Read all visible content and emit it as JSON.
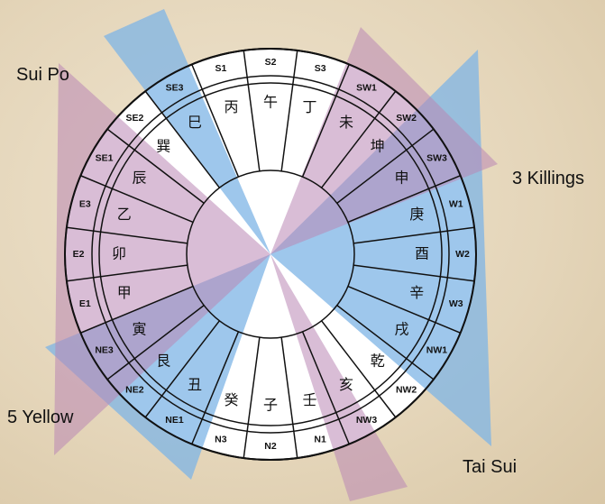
{
  "compass": {
    "sectors": [
      {
        "code": "S2",
        "mountain": "午"
      },
      {
        "code": "S3",
        "mountain": "丁"
      },
      {
        "code": "SW1",
        "mountain": "未"
      },
      {
        "code": "SW2",
        "mountain": "坤"
      },
      {
        "code": "SW3",
        "mountain": "申"
      },
      {
        "code": "W1",
        "mountain": "庚"
      },
      {
        "code": "W2",
        "mountain": "酉"
      },
      {
        "code": "W3",
        "mountain": "辛"
      },
      {
        "code": "NW1",
        "mountain": "戌"
      },
      {
        "code": "NW2",
        "mountain": "乾"
      },
      {
        "code": "NW3",
        "mountain": "亥"
      },
      {
        "code": "N1",
        "mountain": "壬"
      },
      {
        "code": "N2",
        "mountain": "子"
      },
      {
        "code": "N3",
        "mountain": "癸"
      },
      {
        "code": "NE1",
        "mountain": "丑"
      },
      {
        "code": "NE2",
        "mountain": "艮"
      },
      {
        "code": "NE3",
        "mountain": "寅"
      },
      {
        "code": "E1",
        "mountain": "甲"
      },
      {
        "code": "E2",
        "mountain": "卯"
      },
      {
        "code": "E3",
        "mountain": "乙"
      },
      {
        "code": "SE1",
        "mountain": "辰"
      },
      {
        "code": "SE2",
        "mountain": "巽"
      },
      {
        "code": "SE3",
        "mountain": "巳"
      },
      {
        "code": "S1",
        "mountain": "丙"
      }
    ],
    "annotations": {
      "sui_po": "Sui Po",
      "three_killings": "3 Killings",
      "five_yellow": "5 Yellow",
      "tai_sui": "Tai Sui"
    }
  }
}
